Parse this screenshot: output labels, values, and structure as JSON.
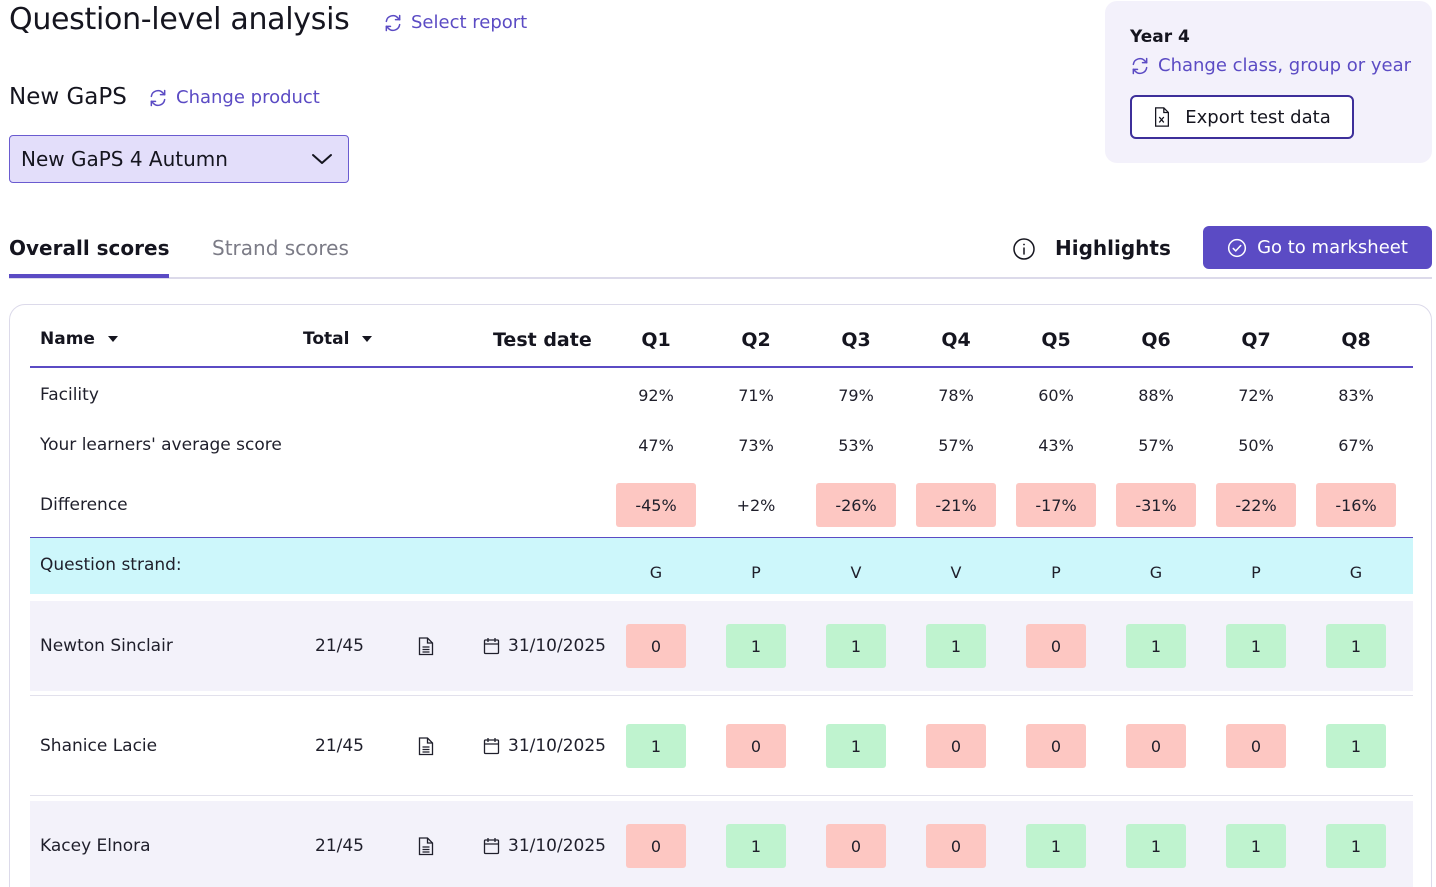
{
  "header": {
    "title": "Question-level analysis",
    "select_report": "Select report",
    "product": "New GaPS",
    "change_product": "Change product",
    "dropdown_value": "New GaPS 4 Autumn"
  },
  "year_card": {
    "year": "Year 4",
    "change_class": "Change class, group or year",
    "export": "Export test data"
  },
  "tabs": {
    "overall": "Overall scores",
    "strand": "Strand scores",
    "highlights": "Highlights",
    "marksheet": "Go to marksheet"
  },
  "table": {
    "headers": {
      "name": "Name",
      "total": "Total",
      "test_date": "Test date"
    },
    "questions": [
      "Q1",
      "Q2",
      "Q3",
      "Q4",
      "Q5",
      "Q6",
      "Q7",
      "Q8"
    ],
    "facility_label": "Facility",
    "facility": [
      "92%",
      "71%",
      "79%",
      "78%",
      "60%",
      "88%",
      "72%",
      "83%"
    ],
    "average_label": "Your learners' average score",
    "average": [
      "47%",
      "73%",
      "53%",
      "57%",
      "43%",
      "57%",
      "50%",
      "67%"
    ],
    "difference_label": "Difference",
    "difference": [
      "-45%",
      "+2%",
      "-26%",
      "-21%",
      "-17%",
      "-31%",
      "-22%",
      "-16%"
    ],
    "strand_label": "Question strand:",
    "strands": [
      "G",
      "P",
      "V",
      "V",
      "P",
      "G",
      "P",
      "G"
    ],
    "pupils": [
      {
        "name": "Newton Sinclair",
        "total": "21/45",
        "date": "31/10/2025",
        "marks": [
          "0",
          "1",
          "1",
          "1",
          "0",
          "1",
          "1",
          "1"
        ]
      },
      {
        "name": "Shanice Lacie",
        "total": "21/45",
        "date": "31/10/2025",
        "marks": [
          "1",
          "0",
          "1",
          "0",
          "0",
          "0",
          "0",
          "1"
        ]
      },
      {
        "name": "Kacey Elnora",
        "total": "21/45",
        "date": "31/10/2025",
        "marks": [
          "0",
          "1",
          "0",
          "0",
          "1",
          "1",
          "1",
          "1"
        ]
      }
    ]
  },
  "colors": {
    "accent": "#5b4bc4",
    "negative": "#fdc7c2",
    "positive": "#bff3cf",
    "strand_bg": "#cdf7fb"
  }
}
